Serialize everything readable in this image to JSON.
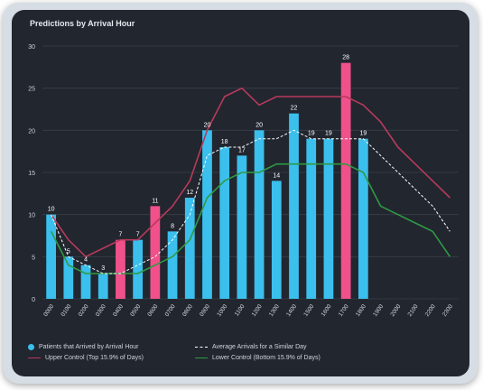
{
  "chart_data": {
    "type": "bar",
    "title": "Predictions by Arrival Hour",
    "y_ticks": [
      0,
      5,
      10,
      15,
      20,
      25,
      30
    ],
    "ylim": [
      0,
      30
    ],
    "grid": true,
    "legend_position": "bottom",
    "categories": [
      "0000",
      "0100",
      "0200",
      "0300",
      "0400",
      "0500",
      "0600",
      "0700",
      "0800",
      "0900",
      "1000",
      "1100",
      "1200",
      "1300",
      "1400",
      "1500",
      "1600",
      "1700",
      "1800",
      "1900",
      "2000",
      "2100",
      "2200",
      "2300"
    ],
    "series": [
      {
        "name": "Patients that Arrived by Arrival Hour",
        "kind": "bar",
        "values": [
          10,
          5,
          4,
          3,
          7,
          7,
          11,
          8,
          12,
          20,
          18,
          17,
          20,
          14,
          22,
          19,
          19,
          28,
          19,
          null,
          null,
          null,
          null,
          null
        ],
        "labels": [
          "10",
          "5",
          "4",
          "3",
          "7",
          "7",
          "11",
          "8",
          "12",
          "20",
          "18",
          "17",
          "20",
          "14",
          "22",
          "19",
          "19",
          "28",
          "19",
          "",
          "",
          "",
          "",
          ""
        ],
        "highlight": [
          false,
          false,
          false,
          false,
          true,
          false,
          true,
          false,
          false,
          false,
          false,
          false,
          false,
          false,
          false,
          false,
          false,
          true,
          false,
          false,
          false,
          false,
          false,
          false
        ]
      },
      {
        "name": "Average Arrivals for a Similar Day",
        "kind": "line-dashed",
        "values": [
          10,
          5,
          4,
          3,
          3,
          4,
          5,
          7,
          10,
          17,
          18,
          18,
          19,
          19,
          20,
          19,
          19,
          19,
          19,
          17,
          15,
          13,
          11,
          8
        ]
      },
      {
        "name": "Upper Control (Top 15.9% of Days)",
        "kind": "line",
        "values": [
          10,
          7,
          5,
          6,
          7,
          7,
          9,
          11,
          14,
          20,
          24,
          25,
          23,
          24,
          24,
          24,
          24,
          24,
          23,
          21,
          18,
          16,
          14,
          12
        ]
      },
      {
        "name": "Lower Control (Bottom 15.9% of Days)",
        "kind": "line",
        "values": [
          8,
          4,
          3,
          3,
          3,
          3,
          4,
          5,
          7,
          12,
          14,
          15,
          15,
          16,
          16,
          16,
          16,
          16,
          15,
          11,
          10,
          9,
          8,
          5
        ]
      }
    ]
  },
  "colors": {
    "bar": "#3bbfed",
    "bar_highlight": "#f0518a",
    "average": "#ffffff",
    "upper": "#b73a5c",
    "lower": "#2f9a45",
    "grid": "#3a3f4a",
    "text": "#cfd3da"
  }
}
